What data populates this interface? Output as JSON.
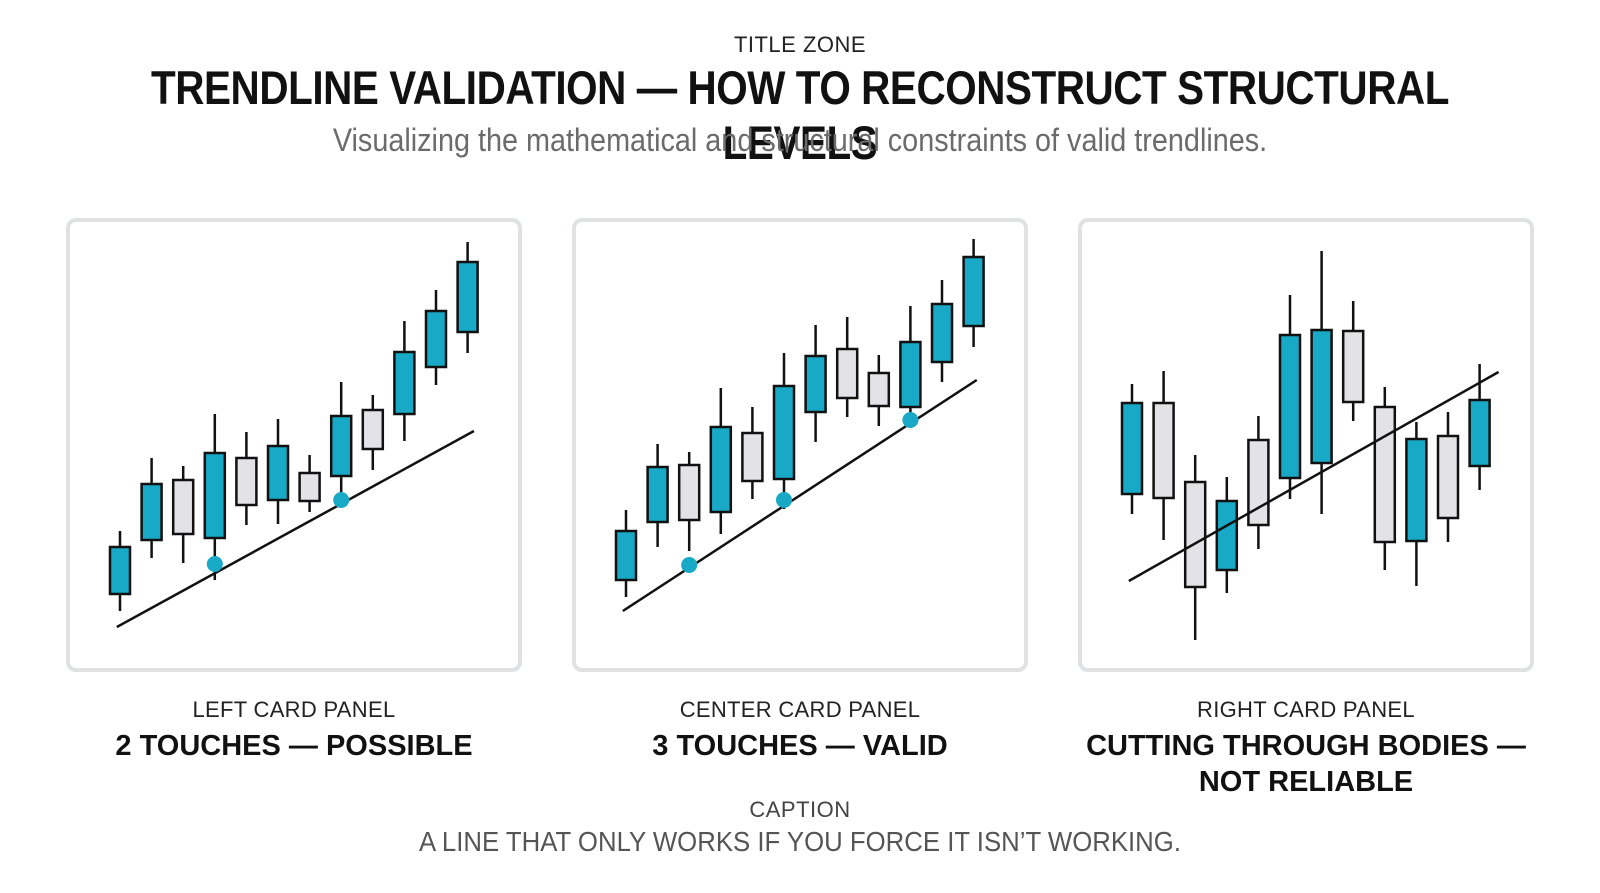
{
  "title_zone": {
    "label": "TITLE ZONE",
    "title": "TRENDLINE VALIDATION — HOW TO RECONSTRUCT STRUCTURAL LEVELS",
    "subtitle": "Visualizing the mathematical and structural constraints of valid trendlines."
  },
  "colors": {
    "bullish_body": "#17a9c6",
    "bearish_body": "#e3e3e7",
    "outline": "#111111",
    "touch_point": "#17a9c6",
    "card_border": "#dfe1e3"
  },
  "panels": [
    {
      "label": "LEFT CARD PANEL",
      "heading": "2 TOUCHES — POSSIBLE",
      "candles": [
        {
          "dir": "up",
          "open": 28,
          "close": 75,
          "high": 91,
          "low": 11
        },
        {
          "dir": "up",
          "open": 82,
          "close": 138,
          "high": 164,
          "low": 64
        },
        {
          "dir": "down",
          "open": 142,
          "close": 88,
          "high": 156,
          "low": 59
        },
        {
          "dir": "up",
          "open": 84,
          "close": 169,
          "high": 208,
          "low": 42
        },
        {
          "dir": "down",
          "open": 164,
          "close": 117,
          "high": 190,
          "low": 97
        },
        {
          "dir": "up",
          "open": 122,
          "close": 176,
          "high": 203,
          "low": 98
        },
        {
          "dir": "down",
          "open": 149,
          "close": 121,
          "high": 167,
          "low": 110
        },
        {
          "dir": "up",
          "open": 146,
          "close": 206,
          "high": 240,
          "low": 128
        },
        {
          "dir": "down",
          "open": 212,
          "close": 173,
          "high": 227,
          "low": 152
        },
        {
          "dir": "up",
          "open": 208,
          "close": 270,
          "high": 301,
          "low": 181
        },
        {
          "dir": "up",
          "open": 255,
          "close": 311,
          "high": 332,
          "low": 237
        },
        {
          "dir": "up",
          "open": 290,
          "close": 360,
          "high": 380,
          "low": 269
        }
      ],
      "trendline": {
        "from": {
          "i": -0.1,
          "v": -5
        },
        "to": {
          "i": 11.2,
          "v": 191
        }
      },
      "touches": [
        {
          "i": 3,
          "v": 58
        },
        {
          "i": 7,
          "v": 122
        }
      ]
    },
    {
      "label": "CENTER CARD PANEL",
      "heading": "3 TOUCHES — VALID",
      "candles": [
        {
          "dir": "up",
          "open": 42,
          "close": 91,
          "high": 112,
          "low": 25
        },
        {
          "dir": "up",
          "open": 100,
          "close": 155,
          "high": 178,
          "low": 75
        },
        {
          "dir": "down",
          "open": 157,
          "close": 102,
          "high": 170,
          "low": 71
        },
        {
          "dir": "up",
          "open": 110,
          "close": 195,
          "high": 234,
          "low": 88
        },
        {
          "dir": "down",
          "open": 189,
          "close": 141,
          "high": 215,
          "low": 123
        },
        {
          "dir": "up",
          "open": 143,
          "close": 236,
          "high": 269,
          "low": 113
        },
        {
          "dir": "up",
          "open": 210,
          "close": 266,
          "high": 297,
          "low": 180
        },
        {
          "dir": "down",
          "open": 273,
          "close": 224,
          "high": 305,
          "low": 205
        },
        {
          "dir": "down",
          "open": 249,
          "close": 216,
          "high": 267,
          "low": 196
        },
        {
          "dir": "up",
          "open": 215,
          "close": 280,
          "high": 316,
          "low": 195
        },
        {
          "dir": "up",
          "open": 260,
          "close": 318,
          "high": 342,
          "low": 240
        },
        {
          "dir": "up",
          "open": 296,
          "close": 365,
          "high": 383,
          "low": 275
        }
      ],
      "trendline": {
        "from": {
          "i": -0.1,
          "v": 11
        },
        "to": {
          "i": 11.1,
          "v": 242
        }
      },
      "touches": [
        {
          "i": 2,
          "v": 57
        },
        {
          "i": 5,
          "v": 122
        },
        {
          "i": 9,
          "v": 202
        }
      ]
    },
    {
      "label": "RIGHT CARD PANEL",
      "heading": "CUTTING THROUGH BODIES — NOT RELIABLE",
      "candles": [
        {
          "dir": "up",
          "open": 128,
          "close": 219,
          "high": 238,
          "low": 108
        },
        {
          "dir": "down",
          "open": 219,
          "close": 124,
          "high": 251,
          "low": 82
        },
        {
          "dir": "down",
          "open": 140,
          "close": 35,
          "high": 167,
          "low": -18
        },
        {
          "dir": "up",
          "open": 52,
          "close": 121,
          "high": 145,
          "low": 29
        },
        {
          "dir": "down",
          "open": 182,
          "close": 97,
          "high": 206,
          "low": 73
        },
        {
          "dir": "up",
          "open": 144,
          "close": 287,
          "high": 327,
          "low": 123
        },
        {
          "dir": "up",
          "open": 159,
          "close": 292,
          "high": 371,
          "low": 108
        },
        {
          "dir": "down",
          "open": 291,
          "close": 220,
          "high": 321,
          "low": 201
        },
        {
          "dir": "down",
          "open": 215,
          "close": 80,
          "high": 235,
          "low": 52
        },
        {
          "dir": "up",
          "open": 81,
          "close": 183,
          "high": 200,
          "low": 36
        },
        {
          "dir": "down",
          "open": 186,
          "close": 104,
          "high": 210,
          "low": 80
        },
        {
          "dir": "up",
          "open": 156,
          "close": 222,
          "high": 258,
          "low": 132
        }
      ],
      "trendline": {
        "from": {
          "i": -0.1,
          "v": 41
        },
        "to": {
          "i": 11.6,
          "v": 250
        }
      },
      "touches": []
    }
  ],
  "caption": {
    "label": "CAPTION",
    "text": "A LINE THAT ONLY WORKS IF YOU FORCE IT ISN’T WORKING."
  }
}
